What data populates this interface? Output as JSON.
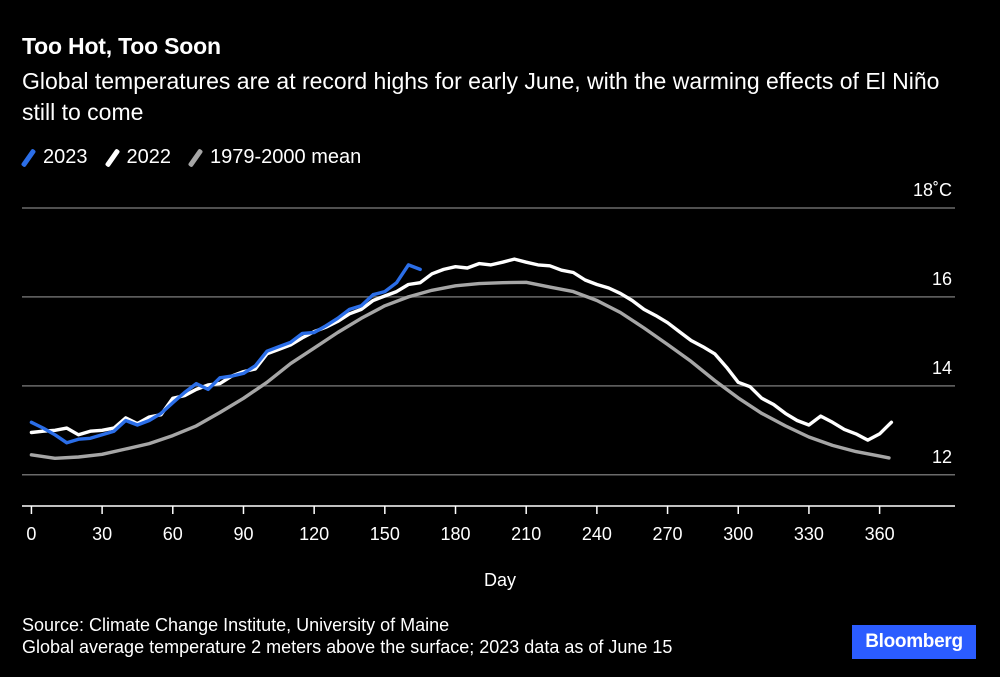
{
  "header": {
    "title": "Too Hot, Too Soon",
    "subtitle": "Global temperatures are at record highs for early June, with the warming effects of El Niño still to come"
  },
  "legend": [
    {
      "label": "2023",
      "color": "#2b6ee8"
    },
    {
      "label": "2022",
      "color": "#ffffff"
    },
    {
      "label": "1979-2000 mean",
      "color": "#a6a6a6"
    }
  ],
  "footer": {
    "source": "Source: Climate Change Institute, University of Maine",
    "note": "Global average temperature 2 meters above the surface; 2023 data as of June 15",
    "logo": "Bloomberg"
  },
  "chart_data": {
    "type": "line",
    "xlabel": "Day",
    "ylabel": "",
    "y_unit": "18˚C",
    "xlim": [
      -4,
      392
    ],
    "ylim": [
      11.5,
      18
    ],
    "x_ticks": [
      0,
      30,
      60,
      90,
      120,
      150,
      180,
      210,
      240,
      270,
      300,
      330,
      360
    ],
    "y_ticks": [
      12,
      14,
      16,
      18
    ],
    "y_tick_labels": [
      "12",
      "14",
      "16",
      "18˚C"
    ],
    "grid": true,
    "legend_position": "top-left",
    "series": [
      {
        "name": "1979-2000 mean",
        "color": "#a6a6a6",
        "x": [
          0,
          10,
          20,
          30,
          40,
          50,
          60,
          70,
          80,
          90,
          100,
          110,
          120,
          130,
          140,
          150,
          160,
          170,
          180,
          190,
          200,
          210,
          220,
          230,
          240,
          250,
          260,
          270,
          280,
          290,
          300,
          310,
          320,
          330,
          340,
          350,
          360,
          364
        ],
        "y": [
          12.45,
          12.37,
          12.4,
          12.46,
          12.58,
          12.7,
          12.88,
          13.1,
          13.4,
          13.72,
          14.08,
          14.5,
          14.85,
          15.2,
          15.52,
          15.8,
          16.0,
          16.15,
          16.25,
          16.3,
          16.32,
          16.33,
          16.22,
          16.12,
          15.92,
          15.65,
          15.3,
          14.93,
          14.55,
          14.12,
          13.73,
          13.38,
          13.1,
          12.85,
          12.66,
          12.52,
          12.42,
          12.38
        ]
      },
      {
        "name": "2022",
        "color": "#ffffff",
        "x": [
          0,
          5,
          10,
          15,
          20,
          25,
          30,
          35,
          40,
          45,
          50,
          55,
          60,
          65,
          70,
          75,
          80,
          85,
          90,
          95,
          100,
          105,
          110,
          115,
          120,
          125,
          130,
          135,
          140,
          145,
          150,
          155,
          160,
          165,
          170,
          175,
          180,
          185,
          190,
          195,
          200,
          205,
          210,
          215,
          220,
          225,
          230,
          235,
          240,
          245,
          250,
          255,
          260,
          265,
          270,
          275,
          280,
          285,
          290,
          295,
          300,
          305,
          310,
          315,
          320,
          325,
          330,
          335,
          340,
          345,
          350,
          355,
          360,
          365
        ],
        "y": [
          12.95,
          12.98,
          13.0,
          13.05,
          12.9,
          12.98,
          13.0,
          13.05,
          13.28,
          13.15,
          13.3,
          13.35,
          13.72,
          13.78,
          13.92,
          14.02,
          14.05,
          14.22,
          14.32,
          14.38,
          14.72,
          14.82,
          14.92,
          15.08,
          15.22,
          15.32,
          15.45,
          15.62,
          15.72,
          15.92,
          16.02,
          16.12,
          16.28,
          16.32,
          16.52,
          16.62,
          16.68,
          16.65,
          16.75,
          16.72,
          16.78,
          16.85,
          16.78,
          16.72,
          16.7,
          16.6,
          16.55,
          16.38,
          16.28,
          16.2,
          16.08,
          15.92,
          15.72,
          15.58,
          15.42,
          15.22,
          15.02,
          14.88,
          14.72,
          14.42,
          14.08,
          13.98,
          13.72,
          13.58,
          13.38,
          13.22,
          13.12,
          13.32,
          13.18,
          13.02,
          12.92,
          12.78,
          12.92,
          13.18
        ]
      },
      {
        "name": "2023",
        "color": "#2b6ee8",
        "x": [
          0,
          5,
          10,
          15,
          20,
          25,
          30,
          35,
          40,
          45,
          50,
          55,
          60,
          65,
          70,
          75,
          80,
          85,
          90,
          95,
          100,
          105,
          110,
          115,
          120,
          125,
          130,
          135,
          140,
          145,
          150,
          155,
          160,
          165
        ],
        "y": [
          13.18,
          13.05,
          12.9,
          12.72,
          12.8,
          12.82,
          12.9,
          12.98,
          13.22,
          13.12,
          13.22,
          13.38,
          13.62,
          13.85,
          14.05,
          13.92,
          14.18,
          14.22,
          14.28,
          14.45,
          14.78,
          14.88,
          14.98,
          15.18,
          15.2,
          15.35,
          15.52,
          15.72,
          15.8,
          16.05,
          16.12,
          16.32,
          16.72,
          16.62
        ]
      }
    ]
  }
}
